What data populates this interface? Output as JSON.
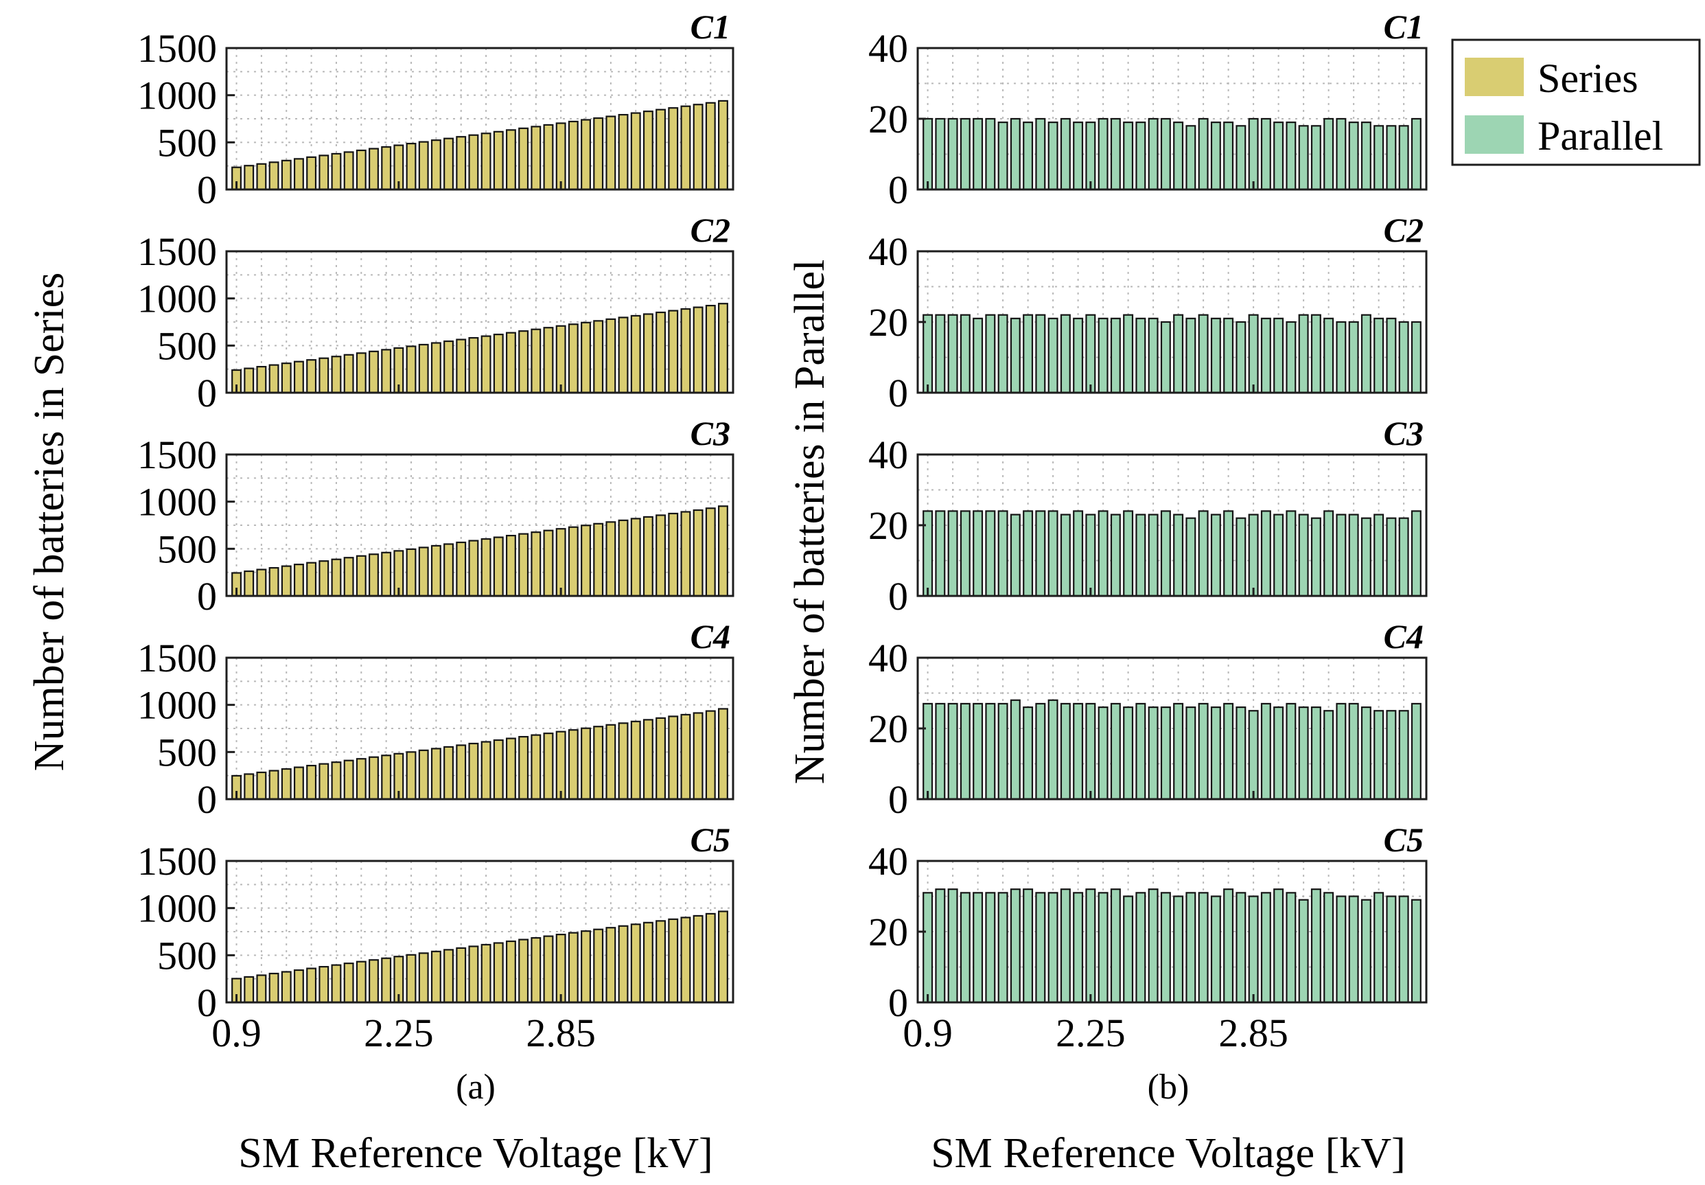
{
  "chart_data": {
    "type": "bar",
    "figure_layout": "5 rows x 2 columns of bar subplots with shared x axis",
    "legend": {
      "placement": "top-right",
      "entries": [
        {
          "name": "Series",
          "color": "#d9cd72"
        },
        {
          "name": "Parallel",
          "color": "#9dd5b3"
        }
      ]
    },
    "colors": {
      "series_fill": "#d9cd72",
      "parallel_fill": "#9dd5b3",
      "edge": "#151515",
      "grid": "#b9b9b9"
    },
    "x_axis": {
      "label": "SM Reference Voltage [kV]",
      "tick_labels": [
        "0.9",
        "2.25",
        "2.85"
      ],
      "tick_positions": [
        1,
        14,
        27
      ],
      "category_count": 40
    },
    "columns": [
      {
        "id": "a",
        "sublabel": "(a)",
        "ylabel": "Number of batteries in Series",
        "ylim": [
          0,
          1500
        ],
        "yticks": [
          0,
          500,
          1000,
          1500
        ],
        "ytick_labels": [
          "0",
          "500",
          "1000",
          "1500"
        ],
        "series_name": "Series",
        "fill": "#d9cd72",
        "panels": [
          {
            "tag": "C1",
            "values": [
              235,
              253,
              271,
              289,
              307,
              325,
              343,
              361,
              379,
              397,
              415,
              433,
              451,
              469,
              487,
              505,
              523,
              541,
              559,
              577,
              595,
              613,
              631,
              649,
              667,
              685,
              703,
              721,
              739,
              757,
              775,
              793,
              811,
              829,
              847,
              865,
              883,
              901,
              919,
              940
            ]
          },
          {
            "tag": "C2",
            "values": [
              240,
              258,
              276,
              294,
              312,
              330,
              348,
              366,
              384,
              402,
              420,
              438,
              456,
              474,
              492,
              510,
              528,
              546,
              564,
              582,
              600,
              618,
              636,
              654,
              672,
              690,
              708,
              726,
              744,
              762,
              780,
              798,
              816,
              834,
              852,
              870,
              888,
              906,
              924,
              945
            ]
          },
          {
            "tag": "C3",
            "values": [
              244,
              262,
              280,
              298,
              316,
              334,
              352,
              370,
              388,
              406,
              424,
              442,
              460,
              478,
              496,
              514,
              532,
              550,
              568,
              586,
              604,
              622,
              640,
              658,
              676,
              694,
              712,
              730,
              748,
              766,
              784,
              802,
              820,
              838,
              856,
              874,
              892,
              910,
              930,
              952
            ]
          },
          {
            "tag": "C4",
            "values": [
              248,
              266,
              284,
              302,
              320,
              338,
              356,
              374,
              392,
              410,
              428,
              446,
              464,
              482,
              500,
              518,
              536,
              554,
              572,
              590,
              608,
              626,
              644,
              662,
              680,
              698,
              716,
              734,
              752,
              770,
              788,
              806,
              824,
              842,
              860,
              878,
              896,
              914,
              935,
              958
            ]
          },
          {
            "tag": "C5",
            "values": [
              252,
              270,
              288,
              306,
              324,
              342,
              360,
              378,
              396,
              414,
              432,
              450,
              468,
              486,
              504,
              522,
              540,
              558,
              576,
              594,
              612,
              630,
              648,
              666,
              684,
              702,
              720,
              738,
              756,
              774,
              792,
              810,
              828,
              846,
              864,
              882,
              900,
              918,
              940,
              965
            ]
          }
        ]
      },
      {
        "id": "b",
        "sublabel": "(b)",
        "ylabel": "Number of batteries in Parallel",
        "ylim": [
          0,
          40
        ],
        "yticks": [
          0,
          20,
          40
        ],
        "ytick_labels": [
          "0",
          "20",
          "40"
        ],
        "series_name": "Parallel",
        "fill": "#9dd5b3",
        "panels": [
          {
            "tag": "C1",
            "values": [
              20,
              20,
              20,
              20,
              20,
              20,
              19,
              20,
              19,
              20,
              19,
              20,
              19,
              19,
              20,
              20,
              19,
              19,
              20,
              20,
              19,
              18,
              20,
              19,
              19,
              18,
              20,
              20,
              19,
              19,
              18,
              18,
              20,
              20,
              19,
              19,
              18,
              18,
              18,
              20
            ]
          },
          {
            "tag": "C2",
            "values": [
              22,
              22,
              22,
              22,
              21,
              22,
              22,
              21,
              22,
              22,
              21,
              22,
              21,
              22,
              21,
              21,
              22,
              21,
              21,
              20,
              22,
              21,
              22,
              21,
              21,
              20,
              22,
              21,
              21,
              20,
              22,
              22,
              21,
              20,
              20,
              22,
              21,
              21,
              20,
              20
            ]
          },
          {
            "tag": "C3",
            "values": [
              24,
              24,
              24,
              24,
              24,
              24,
              24,
              23,
              24,
              24,
              24,
              23,
              24,
              23,
              24,
              23,
              24,
              23,
              23,
              24,
              23,
              22,
              24,
              23,
              24,
              22,
              23,
              24,
              23,
              24,
              23,
              22,
              24,
              23,
              23,
              22,
              23,
              22,
              22,
              24
            ]
          },
          {
            "tag": "C4",
            "values": [
              27,
              27,
              27,
              27,
              27,
              27,
              27,
              28,
              26,
              27,
              28,
              27,
              27,
              27,
              26,
              27,
              26,
              27,
              26,
              26,
              27,
              26,
              27,
              26,
              27,
              26,
              25,
              27,
              26,
              27,
              26,
              26,
              25,
              27,
              27,
              26,
              25,
              25,
              25,
              27
            ]
          },
          {
            "tag": "C5",
            "values": [
              31,
              32,
              32,
              31,
              31,
              31,
              31,
              32,
              32,
              31,
              31,
              32,
              31,
              32,
              31,
              32,
              30,
              31,
              32,
              31,
              30,
              31,
              31,
              30,
              32,
              31,
              30,
              31,
              32,
              31,
              29,
              32,
              31,
              30,
              30,
              29,
              31,
              30,
              30,
              29
            ]
          }
        ]
      }
    ]
  }
}
